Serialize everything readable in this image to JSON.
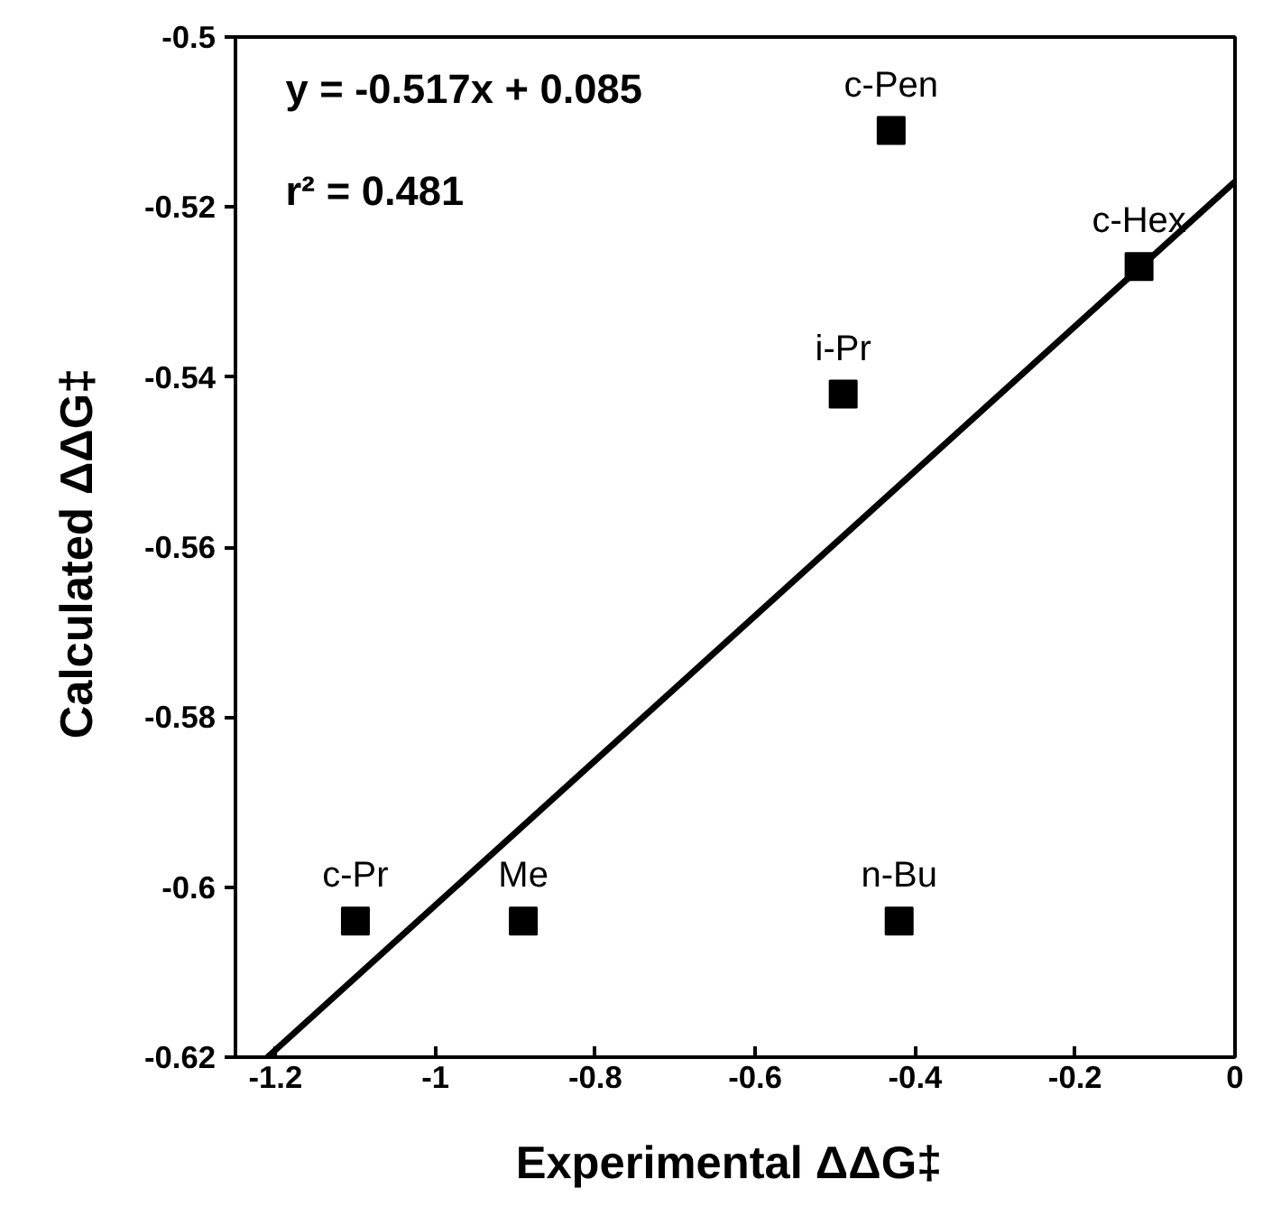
{
  "chart_data": {
    "type": "scatter",
    "xlabel": "Experimental  ΔΔG‡",
    "ylabel": "Calculated  ΔΔG‡",
    "xlim": [
      -1.25,
      0
    ],
    "ylim": [
      -0.62,
      -0.5
    ],
    "xticks": [
      -1.2,
      -1,
      -0.8,
      -0.6,
      -0.4,
      -0.2,
      0
    ],
    "yticks": [
      -0.62,
      -0.6,
      -0.58,
      -0.56,
      -0.54,
      -0.52,
      -0.5
    ],
    "grid": false,
    "series": [
      {
        "marker": "square",
        "color": "#000000",
        "x": [
          -1.1,
          -0.89,
          -0.42,
          -0.49,
          -0.43,
          -0.12
        ],
        "values": [
          -0.604,
          -0.604,
          -0.604,
          -0.542,
          -0.511,
          -0.527
        ]
      },
      {
        "type": "line",
        "color": "#000000",
        "line_style": "solid",
        "x": [
          -1.21,
          0
        ],
        "values": [
          -0.62,
          -0.517
        ]
      }
    ],
    "annotations": [
      "y = -0.517x + 0.085",
      "r² = 0.481",
      {
        "text": "c-Pr",
        "x": -1.1,
        "y": -0.604
      },
      {
        "text": "Me",
        "x": -0.89,
        "y": -0.604
      },
      {
        "text": "n-Bu",
        "x": -0.42,
        "y": -0.604
      },
      {
        "text": "i-Pr",
        "x": -0.49,
        "y": -0.542
      },
      {
        "text": "c-Pen",
        "x": -0.43,
        "y": -0.511
      },
      {
        "text": "c-Hex",
        "x": -0.12,
        "y": -0.527
      }
    ]
  }
}
